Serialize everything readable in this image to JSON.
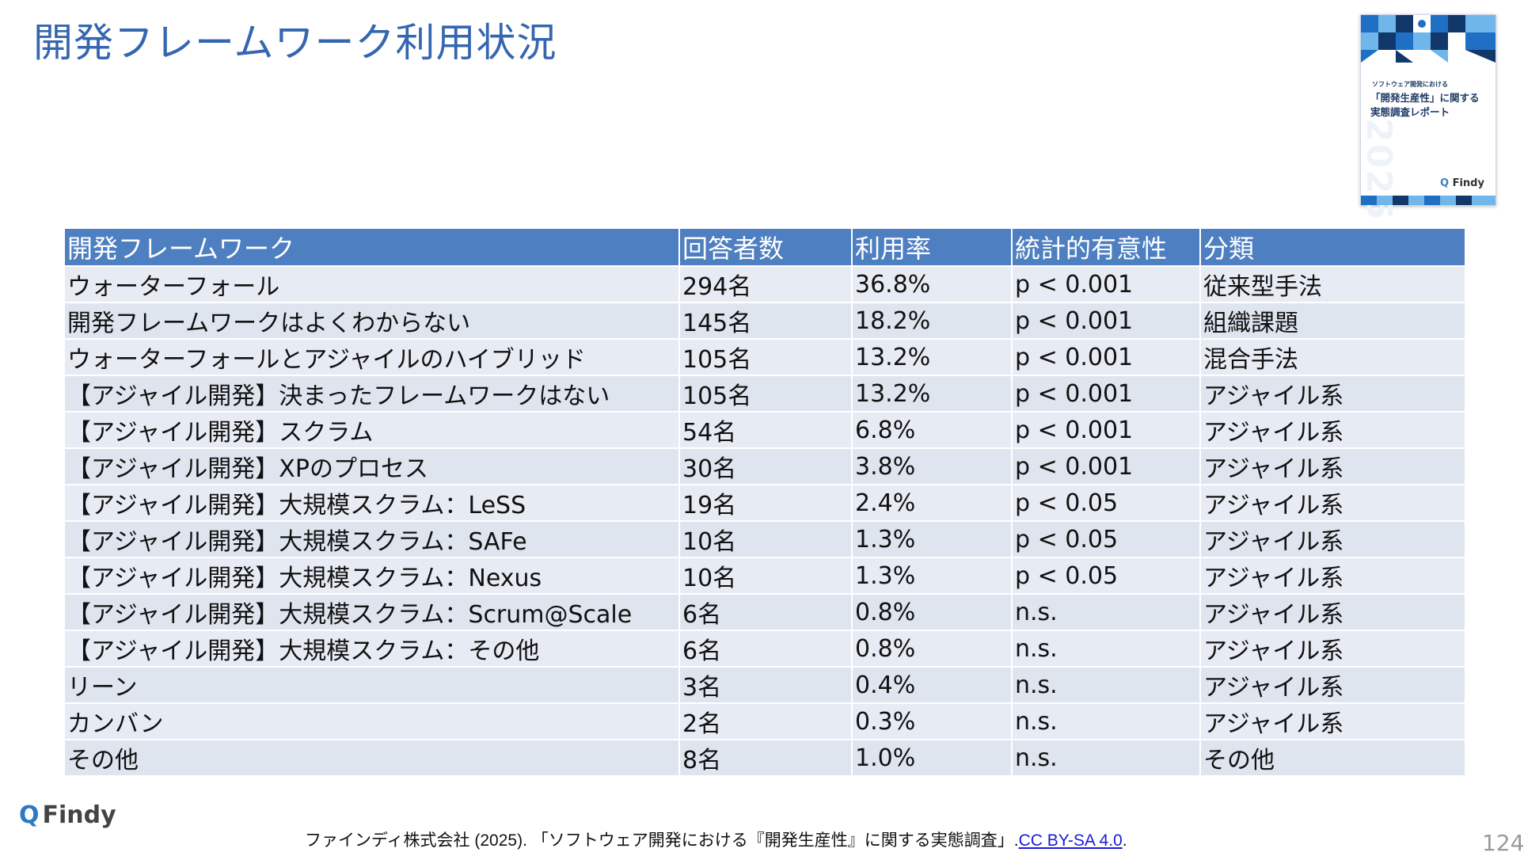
{
  "slide": {
    "title": "開発フレームワーク利用状況",
    "page_number": "124"
  },
  "cover": {
    "small_text": "ソフトウェア開発における",
    "title_line1": "「開発生産性」に関する",
    "title_line2": "実態調査レポート",
    "year": "2025",
    "logo_text": "Findy",
    "colors": {
      "primary": "#1f6fc4",
      "light": "#6fb6ea",
      "dark": "#12386b"
    }
  },
  "table": {
    "headers": [
      "開発フレームワーク",
      "回答者数",
      "利用率",
      "統計的有意性",
      "分類"
    ],
    "rows": [
      [
        "ウォーターフォール",
        "294名",
        "36.8%",
        "p < 0.001",
        "従来型手法"
      ],
      [
        "開発フレームワークはよくわからない",
        "145名",
        "18.2%",
        "p < 0.001",
        "組織課題"
      ],
      [
        "ウォーターフォールとアジャイルのハイブリッド",
        "105名",
        "13.2%",
        "p < 0.001",
        "混合手法"
      ],
      [
        "【アジャイル開発】決まったフレームワークはない",
        "105名",
        "13.2%",
        "p < 0.001",
        "アジャイル系"
      ],
      [
        "【アジャイル開発】スクラム",
        "54名",
        "6.8%",
        "p < 0.001",
        "アジャイル系"
      ],
      [
        "【アジャイル開発】XPのプロセス",
        "30名",
        "3.8%",
        "p < 0.001",
        "アジャイル系"
      ],
      [
        "【アジャイル開発】大規模スクラム：LeSS",
        "19名",
        "2.4%",
        "p < 0.05",
        "アジャイル系"
      ],
      [
        "【アジャイル開発】大規模スクラム：SAFe",
        "10名",
        "1.3%",
        "p < 0.05",
        "アジャイル系"
      ],
      [
        "【アジャイル開発】大規模スクラム：Nexus",
        "10名",
        "1.3%",
        "p < 0.05",
        "アジャイル系"
      ],
      [
        "【アジャイル開発】大規模スクラム：Scrum@Scale",
        "6名",
        "0.8%",
        "n.s.",
        "アジャイル系"
      ],
      [
        "【アジャイル開発】大規模スクラム：その他",
        "6名",
        "0.8%",
        "n.s.",
        "アジャイル系"
      ],
      [
        "リーン",
        "3名",
        "0.4%",
        "n.s.",
        "アジャイル系"
      ],
      [
        "カンバン",
        "2名",
        "0.3%",
        "n.s.",
        "アジャイル系"
      ],
      [
        "その他",
        "8名",
        "1.0%",
        "n.s.",
        "その他"
      ]
    ]
  },
  "footer": {
    "logo_text": "Findy",
    "citation_text": "ファインディ株式会社 (2025). 「ソフトウェア開発における『開発生産性』に関する実態調査」.",
    "license_link": "CC BY-SA 4.0",
    "citation_end": "."
  },
  "colors": {
    "title": "#3566b0",
    "header_bg": "#4e7fc0",
    "row_bg": "#e7ebf3",
    "link": "#1a1ad6"
  }
}
